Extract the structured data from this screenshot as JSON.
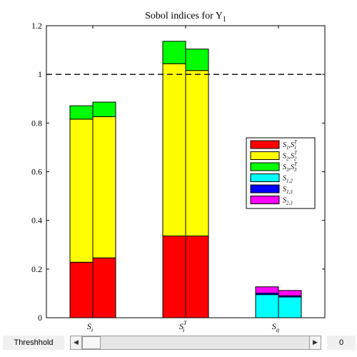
{
  "chart_data": {
    "type": "bar",
    "title": "Sobol indices for Y1",
    "title_parts": {
      "main": "Sobol indices for Y",
      "sub": "1"
    },
    "categories": [
      "S_i",
      "S_i^T",
      "S_ij"
    ],
    "category_labels": [
      {
        "base": "S",
        "sub": "i",
        "sup": ""
      },
      {
        "base": "S",
        "sub": "i",
        "sup": "T"
      },
      {
        "base": "S",
        "sub": "ij",
        "sup": ""
      }
    ],
    "ylim": [
      0,
      1.2
    ],
    "y_ticks": [
      "0",
      "0.2",
      "0.4",
      "0.6",
      "0.8",
      "1",
      "1.2"
    ],
    "y_tick_values": [
      0,
      0.2,
      0.4,
      0.6,
      0.8,
      1.0,
      1.2
    ],
    "reference_line": {
      "y": 1.0,
      "style": "dashed",
      "color": "#000000"
    },
    "threshold_line": {
      "y": 0,
      "style": "dashed",
      "color": "#ff0000"
    },
    "stacked": true,
    "groups": [
      {
        "category": "S_i",
        "bars": [
          {
            "segments": [
              {
                "name": "S1,S1T",
                "value": 0.228
              },
              {
                "name": "S2,S2T",
                "value": 0.588
              },
              {
                "name": "S3,S3T",
                "value": 0.055
              }
            ]
          },
          {
            "segments": [
              {
                "name": "S1,S1T",
                "value": 0.246
              },
              {
                "name": "S2,S2T",
                "value": 0.58
              },
              {
                "name": "S3,S3T",
                "value": 0.06
              }
            ]
          }
        ]
      },
      {
        "category": "S_i^T",
        "bars": [
          {
            "segments": [
              {
                "name": "S1,S1T",
                "value": 0.336
              },
              {
                "name": "S2,S2T",
                "value": 0.708
              },
              {
                "name": "S3,S3T",
                "value": 0.092
              }
            ]
          },
          {
            "segments": [
              {
                "name": "S1,S1T",
                "value": 0.336
              },
              {
                "name": "S2,S2T",
                "value": 0.68
              },
              {
                "name": "S3,S3T",
                "value": 0.088
              }
            ]
          }
        ]
      },
      {
        "category": "S_ij",
        "bars": [
          {
            "segments": [
              {
                "name": "S12",
                "value": 0.095
              },
              {
                "name": "S13",
                "value": 0.006
              },
              {
                "name": "S23",
                "value": 0.026
              }
            ]
          },
          {
            "segments": [
              {
                "name": "S12",
                "value": 0.085
              },
              {
                "name": "S13",
                "value": 0.005
              },
              {
                "name": "S23",
                "value": 0.022
              }
            ]
          }
        ]
      }
    ],
    "legend": {
      "placement": "right-middle",
      "entries": [
        {
          "key": "S1,S1T",
          "color": "#ff0000",
          "label": {
            "a": "S",
            "a_sub": "1",
            "b": "S",
            "b_sub": "1",
            "b_sup": "T"
          }
        },
        {
          "key": "S2,S2T",
          "color": "#ffff00",
          "label": {
            "a": "S",
            "a_sub": "2",
            "b": "S",
            "b_sub": "2",
            "b_sup": "T"
          }
        },
        {
          "key": "S3,S3T",
          "color": "#00ff00",
          "label": {
            "a": "S",
            "a_sub": "3",
            "b": "S",
            "b_sub": "3",
            "b_sup": "T"
          }
        },
        {
          "key": "S12",
          "color": "#00ffff",
          "label": {
            "a": "S",
            "a_sub": "1,2"
          }
        },
        {
          "key": "S13",
          "color": "#0000ff",
          "label": {
            "a": "S",
            "a_sub": "1,3"
          }
        },
        {
          "key": "S23",
          "color": "#ff00ff",
          "label": {
            "a": "S",
            "a_sub": "2,3"
          }
        }
      ]
    },
    "grid": false
  },
  "controls": {
    "threshold_label": "Threshhold",
    "threshold_value": "0",
    "slider_position": 0
  }
}
